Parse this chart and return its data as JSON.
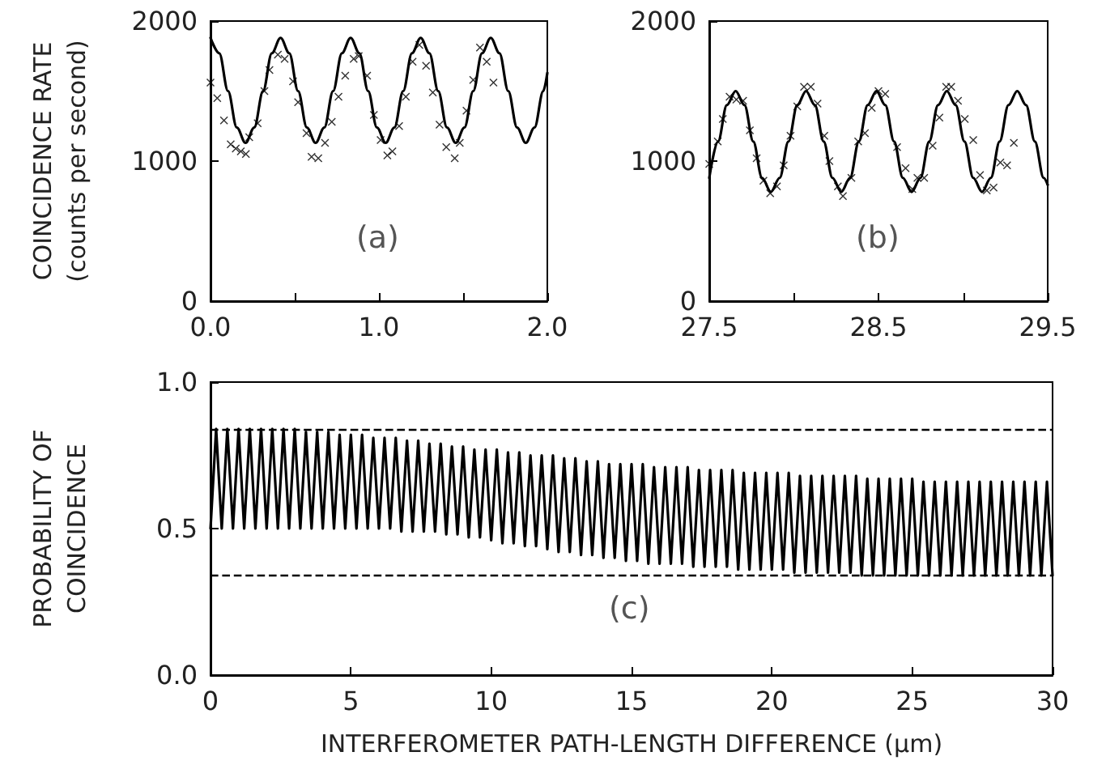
{
  "chart_data": [
    {
      "type": "line",
      "ylabel": "COINCIDENCE RATE\n(counts per second)",
      "annotations": [
        "(a)"
      ],
      "xlim": [
        0,
        2
      ],
      "xticks": [
        {
          "value": 0,
          "label": "0.0"
        },
        {
          "value": 0.5,
          "label": null
        },
        {
          "value": 1,
          "label": "1.0"
        },
        {
          "value": 1.5,
          "label": null
        },
        {
          "value": 2,
          "label": "2.0"
        }
      ],
      "ylim": [
        0,
        2000
      ],
      "yticks": [
        0,
        1000,
        2000
      ],
      "grid": false,
      "series": [
        {
          "marker": "none",
          "color": "#000000",
          "x": [
            0,
            0.052,
            0.104,
            0.156,
            0.208,
            0.26,
            0.312,
            0.364,
            0.416,
            0.468,
            0.52,
            0.572,
            0.624,
            0.676,
            0.728,
            0.78,
            0.832,
            0.884,
            0.936,
            0.988,
            1.04,
            1.092,
            1.144,
            1.196,
            1.248,
            1.3,
            1.352,
            1.404,
            1.456,
            1.508,
            1.56,
            1.612,
            1.664,
            1.716,
            1.768,
            1.82,
            1.872,
            1.924,
            1.976,
            2.0
          ],
          "values": [
            1880,
            1770,
            1500,
            1240,
            1130,
            1240,
            1500,
            1770,
            1880,
            1770,
            1500,
            1240,
            1130,
            1240,
            1500,
            1770,
            1880,
            1770,
            1500,
            1240,
            1130,
            1240,
            1500,
            1770,
            1880,
            1770,
            1500,
            1240,
            1130,
            1240,
            1500,
            1770,
            1880,
            1770,
            1500,
            1240,
            1130,
            1240,
            1500,
            1630
          ]
        },
        {
          "type": "scatter",
          "marker": "cross",
          "color": "#000000",
          "x": [
            0,
            0.04,
            0.08,
            0.12,
            0.15,
            0.18,
            0.21,
            0.23,
            0.28,
            0.32,
            0.35,
            0.4,
            0.44,
            0.49,
            0.52,
            0.57,
            0.6,
            0.64,
            0.68,
            0.72,
            0.76,
            0.8,
            0.85,
            0.88,
            0.93,
            0.97,
            1.01,
            1.05,
            1.08,
            1.12,
            1.16,
            1.2,
            1.24,
            1.28,
            1.32,
            1.36,
            1.4,
            1.45,
            1.48,
            1.52,
            1.56,
            1.6,
            1.64,
            1.68
          ],
          "values": [
            1560,
            1450,
            1290,
            1120,
            1090,
            1070,
            1050,
            1170,
            1270,
            1500,
            1650,
            1760,
            1730,
            1570,
            1420,
            1200,
            1030,
            1020,
            1130,
            1280,
            1460,
            1610,
            1730,
            1750,
            1610,
            1330,
            1150,
            1040,
            1070,
            1250,
            1460,
            1710,
            1830,
            1680,
            1490,
            1260,
            1100,
            1020,
            1130,
            1360,
            1580,
            1810,
            1710,
            1560
          ]
        }
      ]
    },
    {
      "type": "line",
      "annotations": [
        "(b)"
      ],
      "xlim": [
        27.5,
        29.5
      ],
      "xticks": [
        27.5,
        {
          "value": 28,
          "label": null
        },
        28.5,
        {
          "value": 29,
          "label": null
        },
        29.5
      ],
      "ylim": [
        0,
        2000
      ],
      "yticks": [
        0,
        1000,
        2000
      ],
      "grid": false,
      "series": [
        {
          "marker": "none",
          "color": "#000000",
          "x": [
            27.5,
            27.552,
            27.604,
            27.656,
            27.708,
            27.76,
            27.812,
            27.864,
            27.916,
            27.968,
            28.02,
            28.072,
            28.124,
            28.176,
            28.228,
            28.28,
            28.332,
            28.384,
            28.436,
            28.488,
            28.54,
            28.592,
            28.644,
            28.696,
            28.748,
            28.8,
            28.852,
            28.904,
            28.956,
            29.008,
            29.06,
            29.112,
            29.164,
            29.216,
            29.268,
            29.32,
            29.372,
            29.424,
            29.476,
            29.5
          ],
          "values": [
            880,
            1140,
            1400,
            1500,
            1400,
            1140,
            880,
            780,
            880,
            1140,
            1400,
            1500,
            1400,
            1140,
            880,
            780,
            880,
            1140,
            1400,
            1500,
            1400,
            1140,
            880,
            780,
            880,
            1140,
            1400,
            1500,
            1400,
            1140,
            880,
            780,
            880,
            1140,
            1400,
            1500,
            1400,
            1140,
            880,
            830
          ]
        },
        {
          "type": "scatter",
          "marker": "cross",
          "color": "#000000",
          "x": [
            27.5,
            27.55,
            27.58,
            27.62,
            27.66,
            27.7,
            27.74,
            27.78,
            27.82,
            27.86,
            27.9,
            27.94,
            27.98,
            28.02,
            28.06,
            28.1,
            28.14,
            28.18,
            28.21,
            28.26,
            28.29,
            28.34,
            28.38,
            28.42,
            28.46,
            28.5,
            28.54,
            28.61,
            28.66,
            28.7,
            28.73,
            28.77,
            28.82,
            28.86,
            28.9,
            28.93,
            28.97,
            29.01,
            29.06,
            29.1,
            29.14,
            29.18,
            29.22,
            29.26,
            29.3
          ],
          "values": [
            980,
            1140,
            1300,
            1460,
            1440,
            1430,
            1220,
            1020,
            860,
            770,
            820,
            970,
            1180,
            1390,
            1530,
            1530,
            1410,
            1180,
            1000,
            820,
            750,
            880,
            1140,
            1200,
            1380,
            1500,
            1480,
            1100,
            950,
            800,
            880,
            880,
            1110,
            1310,
            1530,
            1530,
            1430,
            1300,
            1150,
            900,
            790,
            810,
            990,
            970,
            1130
          ]
        }
      ]
    },
    {
      "type": "line",
      "xlabel": "INTERFEROMETER PATH-LENGTH DIFFERENCE (μm)",
      "ylabel": "PROBABILITY OF\nCOINCIDENCE",
      "annotations": [
        "(c)"
      ],
      "xlim": [
        0,
        30
      ],
      "xticks": [
        0,
        5,
        10,
        15,
        20,
        25,
        30
      ],
      "ylim": [
        0,
        1
      ],
      "yticks": [
        {
          "value": 0,
          "label": "0.0"
        },
        0.5,
        {
          "value": 1,
          "label": "1.0"
        }
      ],
      "grid": false,
      "ref_lines": [
        {
          "axis": "y",
          "value": 0.84,
          "line_style": "dashed",
          "color": "#000000"
        },
        {
          "axis": "y",
          "value": 0.34,
          "line_style": "dashed",
          "color": "#000000"
        }
      ],
      "series": [
        {
          "marker": "none",
          "color": "#000000",
          "x": [
            0,
            0.2,
            0.4,
            0.6,
            0.8,
            1,
            1.2,
            1.4,
            1.6,
            1.8,
            2,
            2.2,
            2.4,
            2.6,
            2.8,
            3,
            3.2,
            3.4,
            3.6,
            3.8,
            4,
            4.2,
            4.4,
            4.6,
            4.8,
            5,
            5.2,
            5.4,
            5.6,
            5.8,
            6,
            6.2,
            6.4,
            6.6,
            6.8,
            7,
            7.2,
            7.4,
            7.6,
            7.8,
            8,
            8.2,
            8.4,
            8.6,
            8.8,
            9,
            9.2,
            9.4,
            9.6,
            9.8,
            10,
            10.2,
            10.4,
            10.6,
            10.8,
            11,
            11.2,
            11.4,
            11.6,
            11.8,
            12,
            12.2,
            12.4,
            12.6,
            12.8,
            13,
            13.2,
            13.4,
            13.6,
            13.8,
            14,
            14.2,
            14.4,
            14.6,
            14.8,
            15,
            15.2,
            15.4,
            15.6,
            15.8,
            16,
            16.2,
            16.4,
            16.6,
            16.8,
            17,
            17.2,
            17.4,
            17.6,
            17.8,
            18,
            18.2,
            18.4,
            18.6,
            18.8,
            19,
            19.2,
            19.4,
            19.6,
            19.8,
            20,
            20.2,
            20.4,
            20.6,
            20.8,
            21,
            21.2,
            21.4,
            21.6,
            21.8,
            22,
            22.2,
            22.4,
            22.6,
            22.8,
            23,
            23.2,
            23.4,
            23.6,
            23.8,
            24,
            24.2,
            24.4,
            24.6,
            24.8,
            25,
            25.2,
            25.4,
            25.6,
            25.8,
            26,
            26.2,
            26.4,
            26.6,
            26.8,
            27,
            27.2,
            27.4,
            27.6,
            27.8,
            28,
            28.2,
            28.4,
            28.6,
            28.8,
            29,
            29.2,
            29.4,
            29.6,
            29.8,
            30
          ],
          "values": [
            0.5,
            0.84,
            0.5,
            0.84,
            0.5,
            0.84,
            0.5,
            0.84,
            0.5,
            0.84,
            0.5,
            0.84,
            0.5,
            0.84,
            0.5,
            0.84,
            0.5,
            0.83,
            0.5,
            0.83,
            0.5,
            0.83,
            0.5,
            0.82,
            0.5,
            0.82,
            0.5,
            0.82,
            0.5,
            0.81,
            0.5,
            0.81,
            0.5,
            0.81,
            0.49,
            0.8,
            0.49,
            0.8,
            0.49,
            0.79,
            0.49,
            0.79,
            0.48,
            0.78,
            0.48,
            0.78,
            0.47,
            0.77,
            0.47,
            0.77,
            0.46,
            0.77,
            0.45,
            0.76,
            0.45,
            0.76,
            0.44,
            0.75,
            0.44,
            0.75,
            0.43,
            0.75,
            0.42,
            0.74,
            0.42,
            0.74,
            0.41,
            0.73,
            0.41,
            0.73,
            0.4,
            0.72,
            0.4,
            0.72,
            0.39,
            0.72,
            0.39,
            0.72,
            0.38,
            0.71,
            0.38,
            0.71,
            0.38,
            0.71,
            0.38,
            0.71,
            0.37,
            0.7,
            0.37,
            0.7,
            0.37,
            0.7,
            0.37,
            0.7,
            0.36,
            0.69,
            0.36,
            0.69,
            0.36,
            0.69,
            0.36,
            0.69,
            0.36,
            0.69,
            0.35,
            0.68,
            0.35,
            0.68,
            0.35,
            0.68,
            0.35,
            0.68,
            0.35,
            0.68,
            0.35,
            0.68,
            0.34,
            0.67,
            0.34,
            0.67,
            0.34,
            0.67,
            0.34,
            0.67,
            0.34,
            0.67,
            0.34,
            0.66,
            0.34,
            0.66,
            0.34,
            0.66,
            0.34,
            0.66,
            0.34,
            0.66,
            0.34,
            0.66,
            0.34,
            0.66,
            0.34,
            0.66,
            0.34,
            0.66,
            0.34,
            0.66,
            0.34,
            0.66,
            0.34,
            0.66,
            0.34
          ]
        }
      ]
    }
  ]
}
